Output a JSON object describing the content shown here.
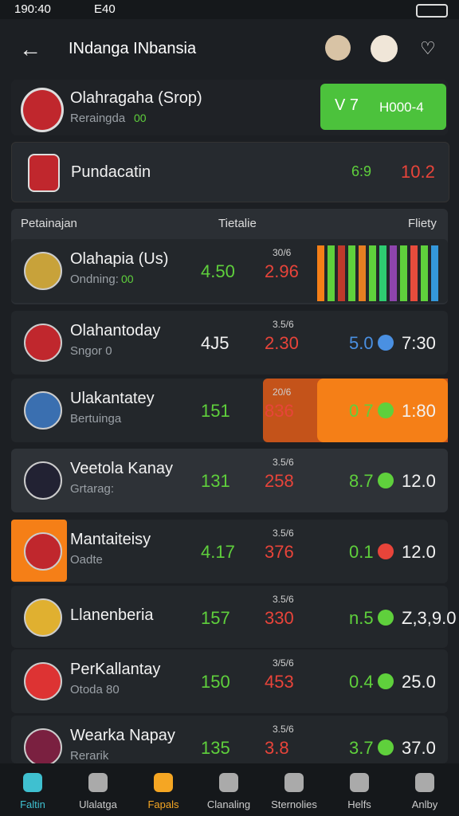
{
  "status_bar": {
    "time": "190:40",
    "carrier": "E40"
  },
  "header": {
    "title": "INdanga INbansia"
  },
  "featured": [
    {
      "name": "Olahragaha (Srop)",
      "sub": "Reraingda",
      "badge": "00",
      "button_left": "V 7",
      "button_right": "H000-4"
    },
    {
      "name": "Pundacatin",
      "odds_left": "6:9",
      "odds_right": "10.2"
    }
  ],
  "table": {
    "headers": [
      "Petainajan",
      "Tietalie",
      "Fliety"
    ],
    "rows": [
      {
        "name": "Olahapia (Us)",
        "sub": "Ondning:",
        "badge": "00",
        "score": "4.50",
        "small": "30/6",
        "odds": "2.96"
      },
      {
        "name": "Olahantoday",
        "sub": "Sngor 0",
        "score": "4J5",
        "small": "3.5/6",
        "odds": "2.30",
        "right_left": "5.0",
        "right_right": "7:30"
      },
      {
        "name": "Ulakantatey",
        "sub": "Bertuinga",
        "score": "151",
        "small": "20/6",
        "odds": "836",
        "right_left": "0 7",
        "right_right": "1:80"
      },
      {
        "name": "Veetola Kanay",
        "sub": "Grtarag:",
        "score": "131",
        "small": "3.5/6",
        "odds": "258",
        "right_left": "8.7",
        "right_right": "12.0"
      },
      {
        "name": "Mantaiteisy",
        "sub": "Oadte",
        "score": "4.17",
        "small": "3.5/6",
        "odds": "376",
        "right_left": "0.1",
        "right_right": "12.0"
      },
      {
        "name": "Llanenberia",
        "score": "157",
        "small": "3.5/6",
        "odds": "330",
        "right_left": "n.5",
        "right_right": "Z,3,9.0"
      },
      {
        "name": "PerKallantay",
        "sub": "Otoda 80",
        "score": "150",
        "small": "3/5/6",
        "odds": "453",
        "right_left": "0.4",
        "right_right": "25.0"
      },
      {
        "name": "Wearka Napay",
        "sub": "Rerarik",
        "score": "135",
        "small": "3.5/6",
        "odds": "3.8",
        "right_left": "3.7",
        "right_right": "37.0"
      }
    ]
  },
  "nav": [
    "Faltin",
    "Ulalatga",
    "Fapals",
    "Clanaling",
    "Sternolies",
    "Helfs",
    "Anlby"
  ]
}
